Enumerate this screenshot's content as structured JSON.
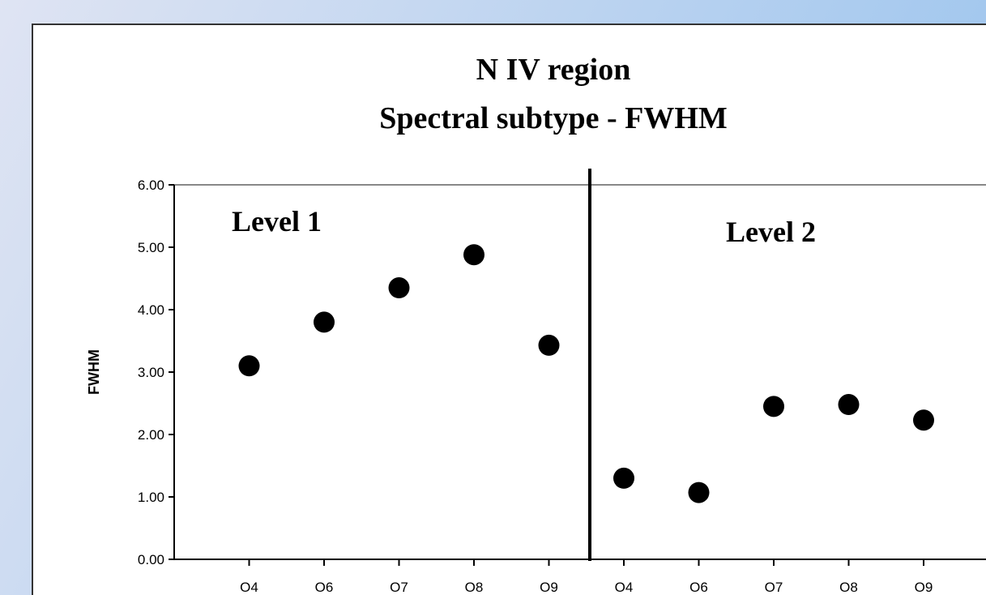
{
  "chart_data": {
    "type": "scatter",
    "title": "N IV region",
    "subtitle": "Spectral subtype - FWHM",
    "y_label": "FWHM",
    "annotations": [
      "Level 1",
      "Level 2"
    ],
    "categories": [
      "O4",
      "O6",
      "O7",
      "O8",
      "O9",
      "O4",
      "O6",
      "O7",
      "O8",
      "O9"
    ],
    "values": [
      3.1,
      3.8,
      4.35,
      4.88,
      3.43,
      1.3,
      1.07,
      2.45,
      2.48,
      2.23
    ],
    "color": "#000000",
    "ylim": [
      0,
      6
    ],
    "yticks": [
      {
        "value": 0,
        "label": "0.00"
      },
      {
        "value": 1,
        "label": "1.00"
      },
      {
        "value": 2,
        "label": "2.00"
      },
      {
        "value": 3,
        "label": "3.00"
      },
      {
        "value": 4,
        "label": "4.00"
      },
      {
        "value": 5,
        "label": "5.00"
      },
      {
        "value": 6,
        "label": "6.00"
      }
    ],
    "grid": false
  }
}
